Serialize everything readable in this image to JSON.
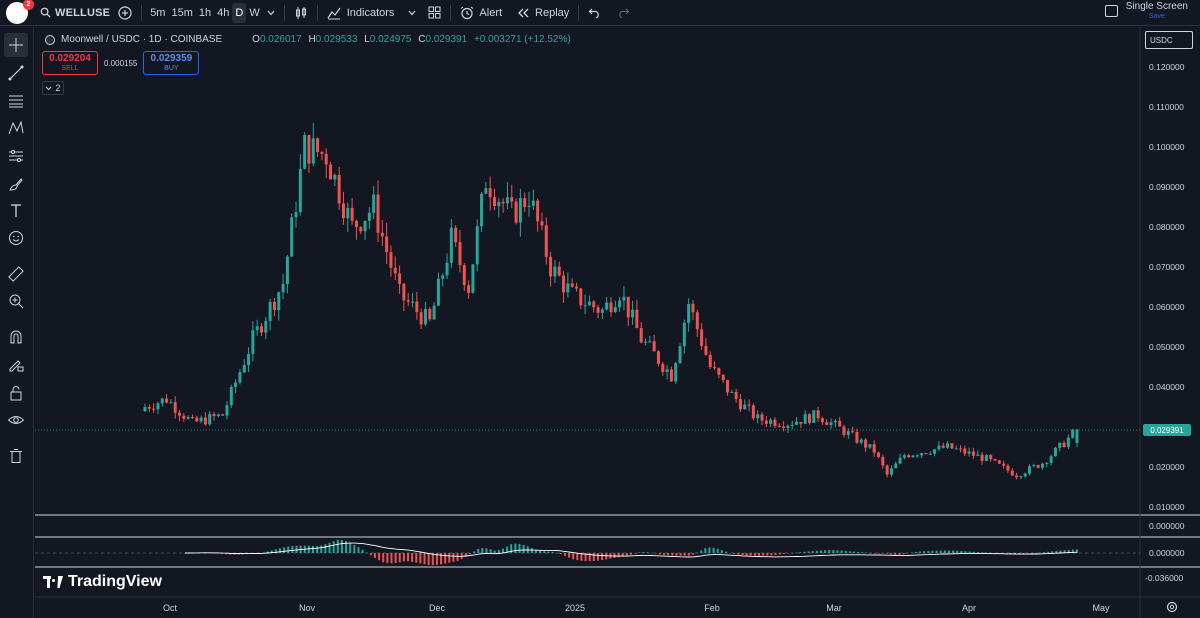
{
  "toolbar": {
    "notification_count": "2",
    "symbol": "WELLUSE",
    "timeframes": [
      "5m",
      "15m",
      "1h",
      "4h",
      "D",
      "W"
    ],
    "active_timeframe": "D",
    "indicators_label": "Indicators",
    "alert_label": "Alert",
    "replay_label": "Replay",
    "layout_label": "Single Screen",
    "save_label": "Save"
  },
  "legend": {
    "title": "Moonwell / USDC · 1D · COINBASE",
    "open_key": "O",
    "open": "0.026017",
    "high_key": "H",
    "high": "0.029533",
    "low_key": "L",
    "low": "0.024975",
    "close_key": "C",
    "close": "0.029391",
    "change": "+0.003271 (+12.52%)",
    "sell_price": "0.029204",
    "sell_label": "SELL",
    "spread": "0.000155",
    "buy_price": "0.029359",
    "buy_label": "BUY",
    "collapsed_count": "2"
  },
  "currency": "USDC",
  "brand": "TradingView",
  "colors": {
    "up": "#26a69a",
    "down": "#ef5350",
    "background": "#131722",
    "accent": "#2962ff"
  },
  "chart_data": {
    "type": "candlestick",
    "pair": "MOONWELL/USDC",
    "interval": "1D",
    "y_ticks": [
      "0.120000",
      "0.110000",
      "0.100000",
      "0.090000",
      "0.080000",
      "0.070000",
      "0.060000",
      "0.050000",
      "0.040000",
      "0.020000",
      "0.010000"
    ],
    "last_price": "0.029391",
    "ylim": [
      0.006,
      0.126
    ],
    "x_ticks": [
      "Oct",
      "Nov",
      "Dec",
      "2025",
      "Feb",
      "Mar",
      "Apr",
      "May"
    ],
    "series_daily_close_approx": [
      {
        "date": "2024-09-20",
        "close": 0.035
      },
      {
        "date": "2024-09-25",
        "close": 0.037
      },
      {
        "date": "2024-10-01",
        "close": 0.031
      },
      {
        "date": "2024-10-08",
        "close": 0.033
      },
      {
        "date": "2024-10-15",
        "close": 0.052
      },
      {
        "date": "2024-10-22",
        "close": 0.066
      },
      {
        "date": "2024-10-27",
        "close": 0.1
      },
      {
        "date": "2024-11-01",
        "close": 0.098
      },
      {
        "date": "2024-11-07",
        "close": 0.08
      },
      {
        "date": "2024-11-12",
        "close": 0.085
      },
      {
        "date": "2024-11-18",
        "close": 0.063
      },
      {
        "date": "2024-11-25",
        "close": 0.056
      },
      {
        "date": "2024-11-30",
        "close": 0.077
      },
      {
        "date": "2024-12-04",
        "close": 0.065
      },
      {
        "date": "2024-12-08",
        "close": 0.092
      },
      {
        "date": "2024-12-14",
        "close": 0.083
      },
      {
        "date": "2024-12-18",
        "close": 0.088
      },
      {
        "date": "2024-12-23",
        "close": 0.07
      },
      {
        "date": "2024-12-28",
        "close": 0.063
      },
      {
        "date": "2025-01-04",
        "close": 0.059
      },
      {
        "date": "2025-01-08",
        "close": 0.064
      },
      {
        "date": "2025-01-13",
        "close": 0.052
      },
      {
        "date": "2025-01-20",
        "close": 0.043
      },
      {
        "date": "2025-01-24",
        "close": 0.061
      },
      {
        "date": "2025-01-29",
        "close": 0.045
      },
      {
        "date": "2025-02-03",
        "close": 0.038
      },
      {
        "date": "2025-02-09",
        "close": 0.032
      },
      {
        "date": "2025-02-16",
        "close": 0.031
      },
      {
        "date": "2025-02-23",
        "close": 0.033
      },
      {
        "date": "2025-03-01",
        "close": 0.029
      },
      {
        "date": "2025-03-08",
        "close": 0.024
      },
      {
        "date": "2025-03-11",
        "close": 0.018
      },
      {
        "date": "2025-03-15",
        "close": 0.023
      },
      {
        "date": "2025-03-25",
        "close": 0.025
      },
      {
        "date": "2025-04-03",
        "close": 0.022
      },
      {
        "date": "2025-04-10",
        "close": 0.018
      },
      {
        "date": "2025-04-16",
        "close": 0.021
      },
      {
        "date": "2025-04-21",
        "close": 0.026
      },
      {
        "date": "2025-04-24",
        "close": 0.029391
      }
    ],
    "oscillator": {
      "y_ticks": [
        "0.000000",
        "0.000000",
        "-0.036000"
      ]
    }
  }
}
